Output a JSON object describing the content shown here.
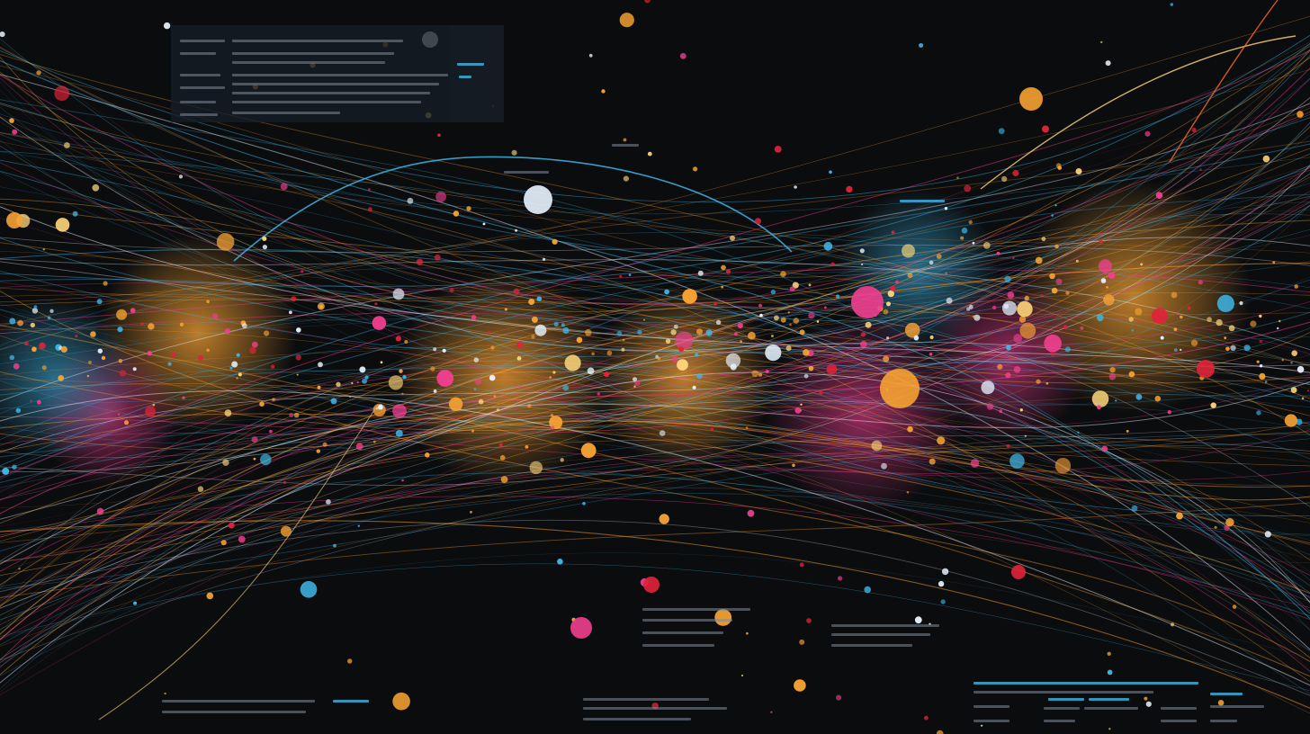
{
  "colors": {
    "background": "#0b0c0e",
    "panel": "#16202a",
    "cyan": "#3fb6e6",
    "orange": "#f6a233",
    "pink": "#ef3f8f",
    "yellow": "#ffd77a",
    "red": "#e0233a",
    "white": "#e8f4ff"
  },
  "layers": [
    "flow-curves",
    "glow-clusters",
    "node-dots",
    "info-panels"
  ]
}
